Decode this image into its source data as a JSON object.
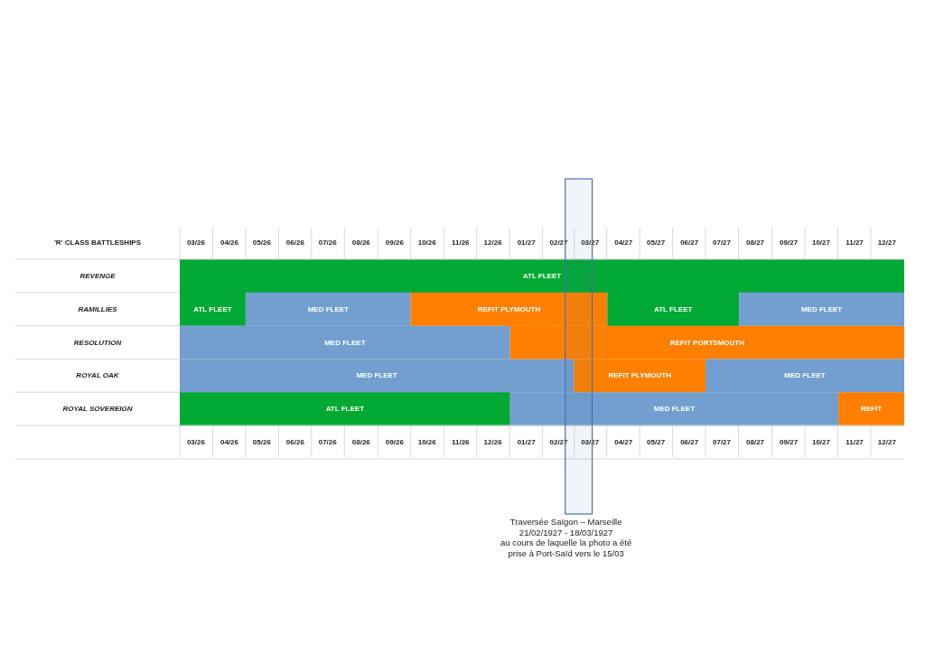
{
  "chart_data": {
    "type": "bar",
    "orientation": "horizontal",
    "title": "'R' CLASS BATTLESHIPS",
    "categories": [
      "REVENGE",
      "RAMILLIES",
      "RESOLUTION",
      "ROYAL OAK",
      "ROYAL SOVEREIGN"
    ],
    "series": [
      {
        "colors": [
          "#00a933",
          "#00a933",
          "#729fcf",
          "#729fcf",
          "#00a933"
        ],
        "base": [
          -16012,
          -16012,
          -16012,
          -16012,
          -16012
        ],
        "values": [
          671,
          61,
          306,
          365,
          306
        ],
        "value_labels": [
          "ATL FLEET",
          "ATL FLEET",
          "MED FLEET",
          "MED FLEET",
          "ATL FLEET"
        ]
      },
      {
        "colors": [
          null,
          "#729fcf",
          "#ff8000",
          "#ff8000",
          "#729fcf"
        ],
        "base": [
          null,
          -15951,
          -15706,
          -15647,
          -15706
        ],
        "values": [
          null,
          153,
          365,
          122,
          304
        ],
        "value_labels": [
          null,
          "MED FLEET",
          "REFIT PORTSMOUTH",
          "REFIT PLYMOUTH",
          "MED FLEET"
        ]
      },
      {
        "colors": [
          null,
          "#ff8000",
          null,
          "#729fcf",
          "#ff8000"
        ],
        "base": [
          null,
          -15798,
          null,
          -15525,
          -15402
        ],
        "values": [
          null,
          182,
          null,
          184,
          61
        ],
        "value_labels": [
          null,
          "REFIT PLYMOUTH",
          null,
          "MED FLEET",
          "REFIT"
        ]
      },
      {
        "colors": [
          null,
          "#00a933",
          null,
          null,
          null
        ],
        "base": [
          null,
          -15616,
          null,
          null,
          null
        ],
        "values": [
          null,
          122,
          null,
          null,
          null
        ],
        "value_labels": [
          null,
          "ATL FLEET",
          null,
          null,
          null
        ]
      },
      {
        "colors": [
          null,
          "#729fcf",
          null,
          null,
          null
        ],
        "base": [
          null,
          -15494,
          null,
          null,
          null
        ],
        "values": [
          null,
          153,
          null,
          null,
          null
        ],
        "value_labels": [
          null,
          "MED FLEET",
          null,
          null,
          null
        ]
      }
    ],
    "xlim": [
      "1926-03-01",
      "1928-01-01"
    ],
    "xticks": [
      {
        "value": "1926-03-16",
        "label": "03/26"
      },
      {
        "value": "1926-04-16",
        "label": "04/26"
      },
      {
        "value": "1926-05-16",
        "label": "05/26"
      },
      {
        "value": "1926-06-16",
        "label": "06/26"
      },
      {
        "value": "1926-07-16",
        "label": "07/26"
      },
      {
        "value": "1926-08-16",
        "label": "08/26"
      },
      {
        "value": "1926-09-16",
        "label": "09/26"
      },
      {
        "value": "1926-10-16",
        "label": "10/26"
      },
      {
        "value": "1926-11-16",
        "label": "11/26"
      },
      {
        "value": "1926-12-16",
        "label": "12/26"
      },
      {
        "value": "1927-01-16",
        "label": "01/27"
      },
      {
        "value": "1927-02-15",
        "label": "02/27"
      },
      {
        "value": "1927-03-16",
        "label": "03/27"
      },
      {
        "value": "1927-04-16",
        "label": "04/27"
      },
      {
        "value": "1927-05-16",
        "label": "05/27"
      },
      {
        "value": "1927-06-16",
        "label": "06/27"
      },
      {
        "value": "1927-07-16",
        "label": "07/27"
      },
      {
        "value": "1927-08-16",
        "label": "08/27"
      },
      {
        "value": "1927-09-16",
        "label": "09/27"
      },
      {
        "value": "1927-10-16",
        "label": "10/27"
      },
      {
        "value": "1927-11-16",
        "label": "11/27"
      },
      {
        "value": "1927-12-16",
        "label": "12/27"
      }
    ],
    "x2lim": [
      "1926-03-01",
      "1928-01-01"
    ],
    "x2ticks": [
      {
        "value": "1926-03-16",
        "label": "03/26"
      },
      {
        "value": "1926-04-16",
        "label": "04/26"
      },
      {
        "value": "1926-05-16",
        "label": "05/26"
      },
      {
        "value": "1926-06-16",
        "label": "06/26"
      },
      {
        "value": "1926-07-16",
        "label": "07/26"
      },
      {
        "value": "1926-08-16",
        "label": "08/26"
      },
      {
        "value": "1926-09-16",
        "label": "09/26"
      },
      {
        "value": "1926-10-16",
        "label": "10/26"
      },
      {
        "value": "1926-11-16",
        "label": "11/26"
      },
      {
        "value": "1926-12-16",
        "label": "12/26"
      },
      {
        "value": "1927-01-16",
        "label": "01/27"
      },
      {
        "value": "1927-02-15",
        "label": "02/27"
      },
      {
        "value": "1927-03-16",
        "label": "03/27"
      },
      {
        "value": "1927-04-16",
        "label": "04/27"
      },
      {
        "value": "1927-05-16",
        "label": "05/27"
      },
      {
        "value": "1927-06-16",
        "label": "06/27"
      },
      {
        "value": "1927-07-16",
        "label": "07/27"
      },
      {
        "value": "1927-08-16",
        "label": "08/27"
      },
      {
        "value": "1927-09-16",
        "label": "09/27"
      },
      {
        "value": "1927-10-16",
        "label": "10/27"
      },
      {
        "value": "1927-11-16",
        "label": "11/27"
      },
      {
        "value": "1927-12-16",
        "label": "12/27"
      }
    ],
    "grid": "y",
    "bands": [
      {
        "axis": "x",
        "from": "1927-02-21",
        "to": "1927-03-18",
        "color": "#4a72b0",
        "label": "Traversée Saïgon – Marseille\n21/02/1927 - 18/03/1927\nau cours de laquelle la photo a été\nprise à Port-Saïd vers le 15/03"
      }
    ]
  }
}
